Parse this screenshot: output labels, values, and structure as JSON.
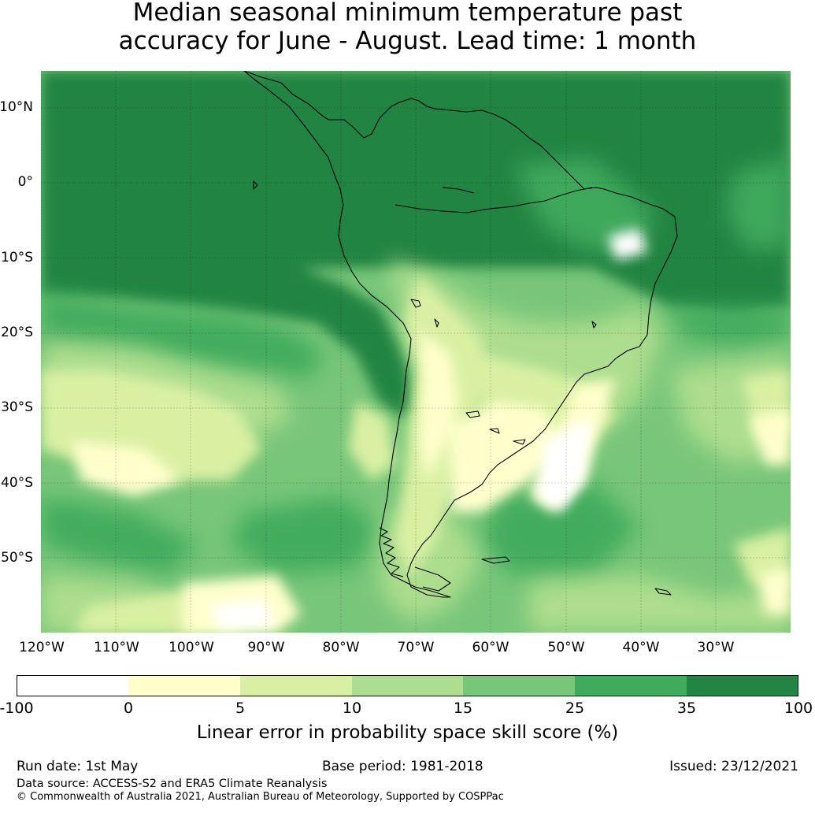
{
  "title": {
    "line1": "Median seasonal minimum temperature past",
    "line2": "accuracy for June - August. Lead time: 1 month"
  },
  "map": {
    "lat_labels": [
      "10°N",
      "0°",
      "10°S",
      "20°S",
      "30°S",
      "40°S",
      "50°S"
    ],
    "lon_labels": [
      "120°W",
      "110°W",
      "100°W",
      "90°W",
      "80°W",
      "70°W",
      "60°W",
      "50°W",
      "40°W",
      "30°W"
    ],
    "region": "South America",
    "lat_range": [
      -60,
      15
    ],
    "lon_range": [
      -120,
      -20
    ],
    "gridlines": true
  },
  "colorbar": {
    "label": "Linear error in probability space skill score (%)",
    "ticks": [
      "-100",
      "0",
      "5",
      "10",
      "15",
      "25",
      "35",
      "100"
    ],
    "bins": [
      {
        "from": -100,
        "to": 0,
        "color": "#ffffff"
      },
      {
        "from": 0,
        "to": 5,
        "color": "#ffffcc"
      },
      {
        "from": 5,
        "to": 10,
        "color": "#d9f0a3"
      },
      {
        "from": 10,
        "to": 15,
        "color": "#addd8e"
      },
      {
        "from": 15,
        "to": 25,
        "color": "#78c679"
      },
      {
        "from": 25,
        "to": 35,
        "color": "#41ab5d"
      },
      {
        "from": 35,
        "to": 100,
        "color": "#238443"
      }
    ]
  },
  "footer": {
    "run_date": "Run date: 1st May",
    "base_period": "Base period: 1981-2018",
    "issued": "Issued: 23/12/2021",
    "data_source": "Data source: ACCESS-S2 and ERA5 Climate Reanalysis",
    "copyright": "© Commonwealth of Australia 2021, Australian Bureau of Meteorology, Supported by COSPPac"
  }
}
